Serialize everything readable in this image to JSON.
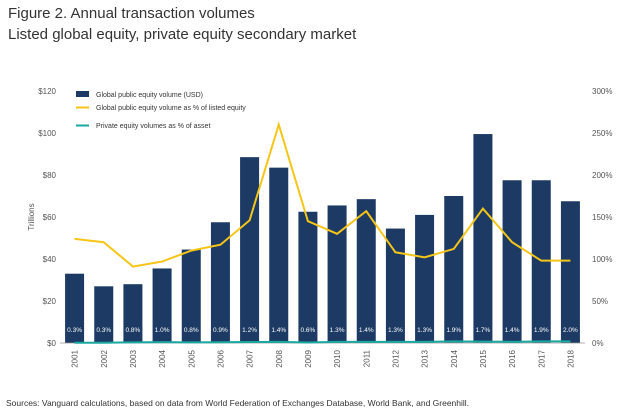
{
  "figure": {
    "title": "Figure 2. Annual transaction volumes",
    "subtitle": "Listed global equity, private equity secondary market",
    "source": "Sources: Vanguard calculations, based on data from World Federation of Exchanges Database, World Bank, and Greenhill."
  },
  "colors": {
    "bar": "#1c3a63",
    "line_listed": "#f5c518",
    "line_private": "#1aa8a0",
    "bar_label": "#ffffff",
    "text": "#555555"
  },
  "chart_data": {
    "type": "bar",
    "title": "Figure 2. Annual transaction volumes",
    "subtitle": "Listed global equity, private equity secondary market",
    "ylabel": "Trillions",
    "categories": [
      "2001",
      "2002",
      "2003",
      "2004",
      "2005",
      "2006",
      "2007",
      "2008",
      "2009",
      "2010",
      "2011",
      "2012",
      "2013",
      "2014",
      "2015",
      "2016",
      "2017",
      "2018"
    ],
    "left_ticks": [
      "$0",
      "$20",
      "$40",
      "$60",
      "$80",
      "$100",
      "$120"
    ],
    "right_ticks": [
      "0%",
      "50%",
      "100%",
      "150%",
      "200%",
      "250%",
      "300%"
    ],
    "ylim": [
      0,
      120
    ],
    "y2lim": [
      0,
      300
    ],
    "legend_position": "top-left",
    "grid": false,
    "series": [
      {
        "name": "Global public equity volume (USD)",
        "type": "bar",
        "axis": "left",
        "values": [
          33,
          27,
          28,
          35.5,
          44.5,
          57.5,
          88.5,
          83.5,
          62.5,
          65.5,
          68.5,
          54.5,
          61,
          70,
          99.5,
          77.5,
          77.5,
          67.5
        ]
      },
      {
        "name": "Global public equity volume as % of listed equity",
        "type": "line",
        "axis": "right",
        "values": [
          124,
          120,
          91,
          97,
          110,
          117,
          146,
          260,
          145,
          130,
          157,
          108,
          102,
          112,
          160,
          120,
          98,
          98
        ]
      },
      {
        "name": "Private equity volumes as % of asset",
        "type": "line",
        "axis": "right",
        "values": [
          0.3,
          0.3,
          0.8,
          1.0,
          0.8,
          0.9,
          1.2,
          1.4,
          0.6,
          1.3,
          1.4,
          1.3,
          1.3,
          1.9,
          1.7,
          1.4,
          1.9,
          2.0
        ],
        "labels": [
          "0.3%",
          "0.3%",
          "0.8%",
          "1.0%",
          "0.8%",
          "0.9%",
          "1.2%",
          "1.4%",
          "0.6%",
          "1.3%",
          "1.4%",
          "1.3%",
          "1.3%",
          "1.9%",
          "1.7%",
          "1.4%",
          "1.9%",
          "2.0%"
        ]
      }
    ]
  }
}
